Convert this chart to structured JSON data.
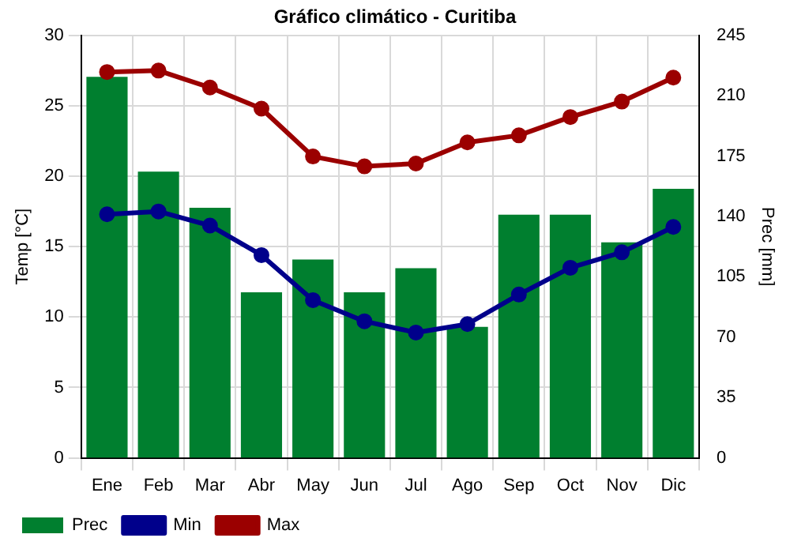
{
  "chart_data": {
    "type": "bar",
    "title": "Gráfico climático - Curitiba",
    "ylabel": "Temp [°C]",
    "y2label": "Prec [mm]",
    "categories": [
      "Ene",
      "Feb",
      "Mar",
      "Abr",
      "May",
      "Jun",
      "Jul",
      "Ago",
      "Sep",
      "Oct",
      "Nov",
      "Dic"
    ],
    "series": [
      {
        "name": "Prec",
        "axis": "y2",
        "color": "#007f2f",
        "values": [
          221,
          166,
          145,
          96,
          115,
          96,
          110,
          76,
          141,
          141,
          125,
          156
        ]
      },
      {
        "name": "Min",
        "type": "line",
        "color": "#00008b",
        "values": [
          17.3,
          17.5,
          16.5,
          14.4,
          11.2,
          9.7,
          8.9,
          9.5,
          11.6,
          13.5,
          14.6,
          16.4
        ]
      },
      {
        "name": "Max",
        "type": "line",
        "color": "#9b0000",
        "values": [
          27.4,
          27.5,
          26.3,
          24.8,
          21.4,
          20.7,
          20.9,
          22.4,
          22.9,
          24.2,
          25.3,
          27.0
        ]
      }
    ],
    "ylim": [
      0,
      30
    ],
    "yticks": [
      0,
      5,
      10,
      15,
      20,
      25,
      30
    ],
    "y2lim": [
      0,
      245
    ],
    "y2ticks": [
      0,
      35,
      70,
      105,
      140,
      175,
      210,
      245
    ],
    "grid": true,
    "legend": "bottom left",
    "marker": "circle"
  }
}
